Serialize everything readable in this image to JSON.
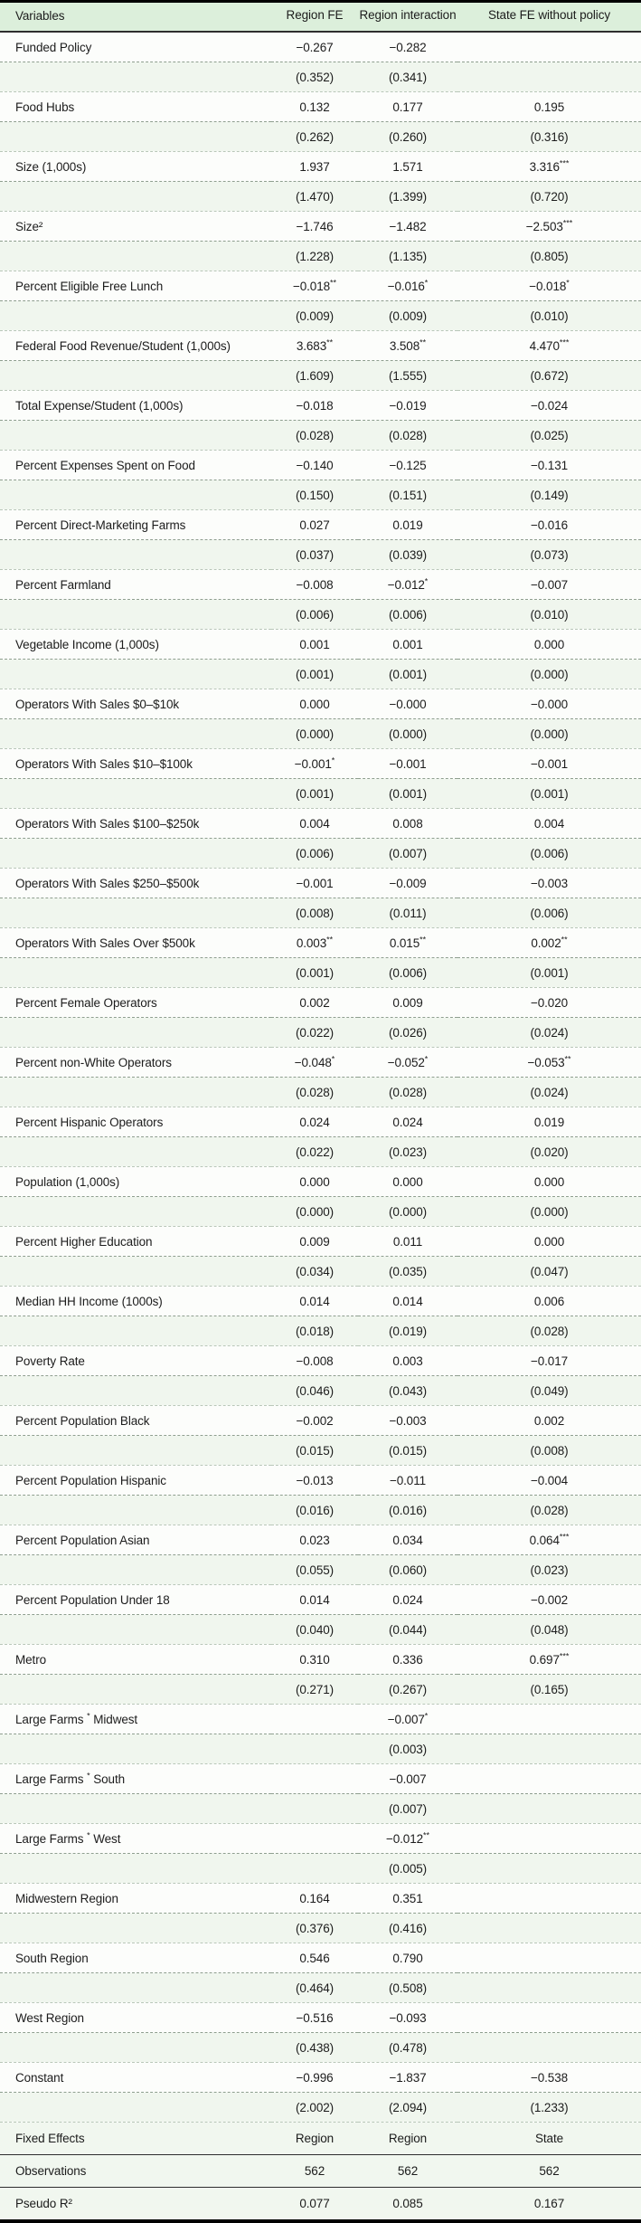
{
  "table": {
    "columns": [
      "Variables",
      "Region FE",
      "Region interaction",
      "State FE without policy"
    ],
    "rows": [
      {
        "label": "Funded Policy",
        "coef": [
          "−0.267",
          "−0.282",
          ""
        ],
        "se": [
          "(0.352)",
          "(0.341)",
          ""
        ]
      },
      {
        "label": "Food Hubs",
        "coef": [
          "0.132",
          "0.177",
          "0.195"
        ],
        "se": [
          "(0.262)",
          "(0.260)",
          "(0.316)"
        ]
      },
      {
        "label": "Size (1,000s)",
        "coef": [
          "1.937",
          "1.571",
          "3.316***"
        ],
        "se": [
          "(1.470)",
          "(1.399)",
          "(0.720)"
        ]
      },
      {
        "label": "Size²",
        "coef": [
          "−1.746",
          "−1.482",
          "−2.503***"
        ],
        "se": [
          "(1.228)",
          "(1.135)",
          "(0.805)"
        ]
      },
      {
        "label": "Percent Eligible Free Lunch",
        "coef": [
          "−0.018**",
          "−0.016*",
          "−0.018*"
        ],
        "se": [
          "(0.009)",
          "(0.009)",
          "(0.010)"
        ]
      },
      {
        "label": "Federal Food Revenue/Student (1,000s)",
        "coef": [
          "3.683**",
          "3.508**",
          "4.470***"
        ],
        "se": [
          "(1.609)",
          "(1.555)",
          "(0.672)"
        ]
      },
      {
        "label": "Total Expense/Student (1,000s)",
        "coef": [
          "−0.018",
          "−0.019",
          "−0.024"
        ],
        "se": [
          "(0.028)",
          "(0.028)",
          "(0.025)"
        ]
      },
      {
        "label": "Percent Expenses Spent on Food",
        "coef": [
          "−0.140",
          "−0.125",
          "−0.131"
        ],
        "se": [
          "(0.150)",
          "(0.151)",
          "(0.149)"
        ]
      },
      {
        "label": "Percent Direct-Marketing Farms",
        "coef": [
          "0.027",
          "0.019",
          "−0.016"
        ],
        "se": [
          "(0.037)",
          "(0.039)",
          "(0.073)"
        ]
      },
      {
        "label": "Percent Farmland",
        "coef": [
          "−0.008",
          "−0.012*",
          "−0.007"
        ],
        "se": [
          "(0.006)",
          "(0.006)",
          "(0.010)"
        ]
      },
      {
        "label": "Vegetable Income (1,000s)",
        "coef": [
          "0.001",
          "0.001",
          "0.000"
        ],
        "se": [
          "(0.001)",
          "(0.001)",
          "(0.000)"
        ]
      },
      {
        "label": "Operators With Sales $0–$10k",
        "coef": [
          "0.000",
          "−0.000",
          "−0.000"
        ],
        "se": [
          "(0.000)",
          "(0.000)",
          "(0.000)"
        ]
      },
      {
        "label": "Operators With Sales $10–$100k",
        "coef": [
          "−0.001*",
          "−0.001",
          "−0.001"
        ],
        "se": [
          "(0.001)",
          "(0.001)",
          "(0.001)"
        ]
      },
      {
        "label": "Operators With Sales $100–$250k",
        "coef": [
          "0.004",
          "0.008",
          "0.004"
        ],
        "se": [
          "(0.006)",
          "(0.007)",
          "(0.006)"
        ]
      },
      {
        "label": "Operators With Sales $250–$500k",
        "coef": [
          "−0.001",
          "−0.009",
          "−0.003"
        ],
        "se": [
          "(0.008)",
          "(0.011)",
          "(0.006)"
        ]
      },
      {
        "label": "Operators With Sales Over $500k",
        "coef": [
          "0.003**",
          "0.015**",
          "0.002**"
        ],
        "se": [
          "(0.001)",
          "(0.006)",
          "(0.001)"
        ]
      },
      {
        "label": "Percent Female Operators",
        "coef": [
          "0.002",
          "0.009",
          "−0.020"
        ],
        "se": [
          "(0.022)",
          "(0.026)",
          "(0.024)"
        ]
      },
      {
        "label": "Percent non-White Operators",
        "coef": [
          "−0.048*",
          "−0.052*",
          "−0.053**"
        ],
        "se": [
          "(0.028)",
          "(0.028)",
          "(0.024)"
        ]
      },
      {
        "label": "Percent Hispanic Operators",
        "coef": [
          "0.024",
          "0.024",
          "0.019"
        ],
        "se": [
          "(0.022)",
          "(0.023)",
          "(0.020)"
        ]
      },
      {
        "label": "Population (1,000s)",
        "coef": [
          "0.000",
          "0.000",
          "0.000"
        ],
        "se": [
          "(0.000)",
          "(0.000)",
          "(0.000)"
        ]
      },
      {
        "label": "Percent Higher Education",
        "coef": [
          "0.009",
          "0.011",
          "0.000"
        ],
        "se": [
          "(0.034)",
          "(0.035)",
          "(0.047)"
        ]
      },
      {
        "label": "Median HH Income (1000s)",
        "coef": [
          "0.014",
          "0.014",
          "0.006"
        ],
        "se": [
          "(0.018)",
          "(0.019)",
          "(0.028)"
        ]
      },
      {
        "label": "Poverty Rate",
        "coef": [
          "−0.008",
          "0.003",
          "−0.017"
        ],
        "se": [
          "(0.046)",
          "(0.043)",
          "(0.049)"
        ]
      },
      {
        "label": "Percent Population Black",
        "coef": [
          "−0.002",
          "−0.003",
          "0.002"
        ],
        "se": [
          "(0.015)",
          "(0.015)",
          "(0.008)"
        ]
      },
      {
        "label": "Percent Population Hispanic",
        "coef": [
          "−0.013",
          "−0.011",
          "−0.004"
        ],
        "se": [
          "(0.016)",
          "(0.016)",
          "(0.028)"
        ]
      },
      {
        "label": "Percent Population Asian",
        "coef": [
          "0.023",
          "0.034",
          "0.064***"
        ],
        "se": [
          "(0.055)",
          "(0.060)",
          "(0.023)"
        ]
      },
      {
        "label": "Percent Population Under 18",
        "coef": [
          "0.014",
          "0.024",
          "−0.002"
        ],
        "se": [
          "(0.040)",
          "(0.044)",
          "(0.048)"
        ]
      },
      {
        "label": "Metro",
        "coef": [
          "0.310",
          "0.336",
          "0.697***"
        ],
        "se": [
          "(0.271)",
          "(0.267)",
          "(0.165)"
        ]
      },
      {
        "label": "Large Farms * Midwest",
        "coef": [
          "",
          "−0.007*",
          ""
        ],
        "se": [
          "",
          "(0.003)",
          ""
        ]
      },
      {
        "label": "Large Farms * South",
        "coef": [
          "",
          "−0.007",
          ""
        ],
        "se": [
          "",
          "(0.007)",
          ""
        ]
      },
      {
        "label": "Large Farms * West",
        "coef": [
          "",
          "−0.012**",
          ""
        ],
        "se": [
          "",
          "(0.005)",
          ""
        ]
      },
      {
        "label": "Midwestern Region",
        "coef": [
          "0.164",
          "0.351",
          ""
        ],
        "se": [
          "(0.376)",
          "(0.416)",
          ""
        ]
      },
      {
        "label": "South Region",
        "coef": [
          "0.546",
          "0.790",
          ""
        ],
        "se": [
          "(0.464)",
          "(0.508)",
          ""
        ]
      },
      {
        "label": "West Region",
        "coef": [
          "−0.516",
          "−0.093",
          ""
        ],
        "se": [
          "(0.438)",
          "(0.478)",
          ""
        ]
      },
      {
        "label": "Constant",
        "coef": [
          "−0.996",
          "−1.837",
          "−0.538"
        ],
        "se": [
          "(2.002)",
          "(2.094)",
          "(1.233)"
        ]
      }
    ],
    "footer": [
      {
        "label": "Fixed Effects",
        "values": [
          "Region",
          "Region",
          "State"
        ]
      },
      {
        "label": "Observations",
        "values": [
          "562",
          "562",
          "562"
        ]
      },
      {
        "label": "Pseudo R²",
        "values": [
          "0.077",
          "0.085",
          "0.167"
        ]
      }
    ],
    "colors": {
      "header_bg": "#dcefdb",
      "coef_row_bg": "#fcfdfb",
      "se_row_bg": "#f0f6ee",
      "footer_bg": "#f1f7ef"
    }
  }
}
